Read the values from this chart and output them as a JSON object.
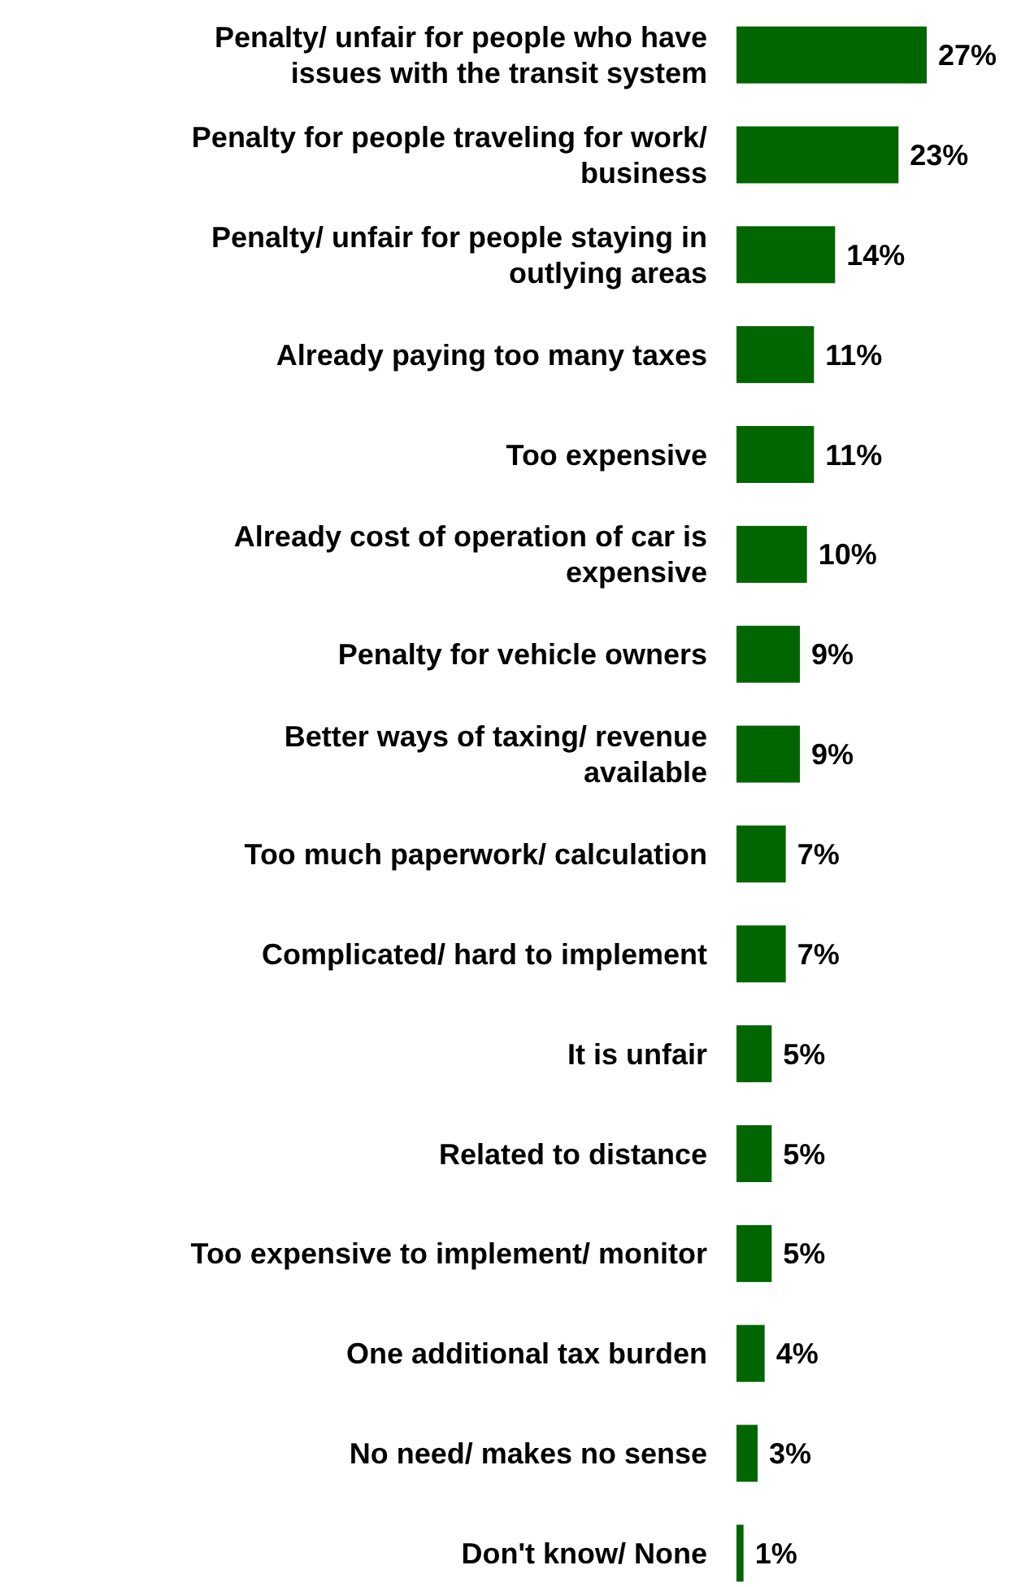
{
  "chart_data": {
    "type": "bar",
    "orientation": "horizontal",
    "categories": [
      "Penalty/ unfair for people who have\nissues with the transit system",
      "Penalty for people traveling for work/\nbusiness",
      "Penalty/ unfair for people staying in\noutlying areas",
      "Already paying too many taxes",
      "Too expensive",
      "Already cost of operation of car is\nexpensive",
      "Penalty for vehicle owners",
      "Better ways of taxing/ revenue\navailable",
      "Too much paperwork/ calculation",
      "Complicated/ hard to implement",
      "It is unfair",
      "Related to distance",
      "Too expensive to implement/ monitor",
      "One additional tax burden",
      "No need/ makes no sense",
      "Don't know/ None"
    ],
    "values": [
      27,
      23,
      14,
      11,
      11,
      10,
      9,
      9,
      7,
      7,
      5,
      5,
      5,
      4,
      3,
      1
    ],
    "value_labels": [
      "27%",
      "23%",
      "14%",
      "11%",
      "11%",
      "10%",
      "9%",
      "9%",
      "7%",
      "7%",
      "5%",
      "5%",
      "5%",
      "4%",
      "3%",
      "1%"
    ],
    "color": "#006600"
  }
}
